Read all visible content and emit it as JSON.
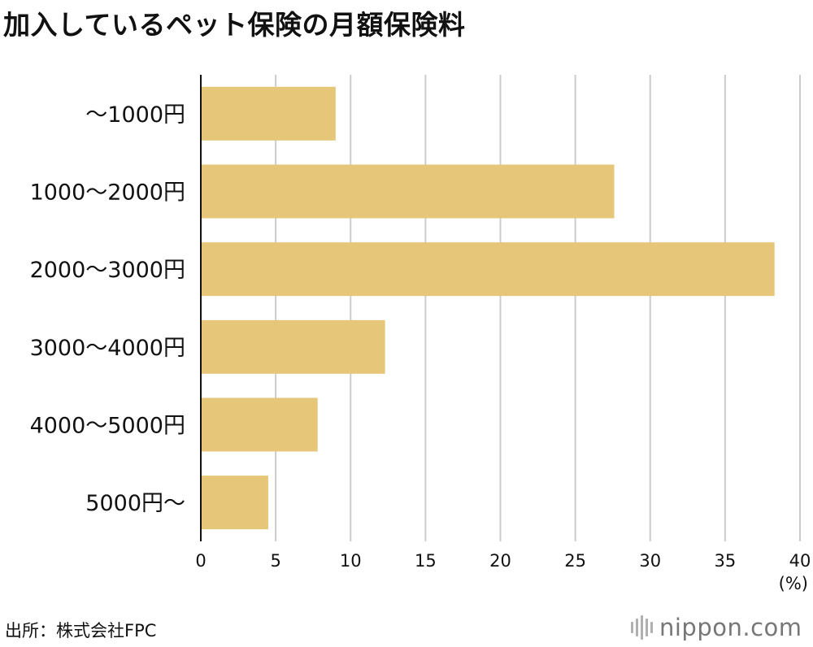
{
  "title": "加入しているペット保険の月額保険料",
  "unit": "(%)",
  "source": "出所：株式会社FPC",
  "logo": "nippon.com",
  "colors": {
    "bar": "#E6C679",
    "grid": "#CCCCCC",
    "axis": "#111111"
  },
  "chart_data": {
    "type": "bar",
    "orientation": "horizontal",
    "categories": [
      "〜1000円",
      "1000〜2000円",
      "2000〜3000円",
      "3000〜4000円",
      "4000〜5000円",
      "5000円〜"
    ],
    "values": [
      9.0,
      27.6,
      38.3,
      12.3,
      7.8,
      4.5
    ],
    "xlim": [
      0,
      40
    ],
    "xticks": [
      0,
      5,
      10,
      15,
      20,
      25,
      30,
      35,
      40
    ],
    "xlabel": "(%)",
    "grid": true,
    "legend": "none"
  }
}
